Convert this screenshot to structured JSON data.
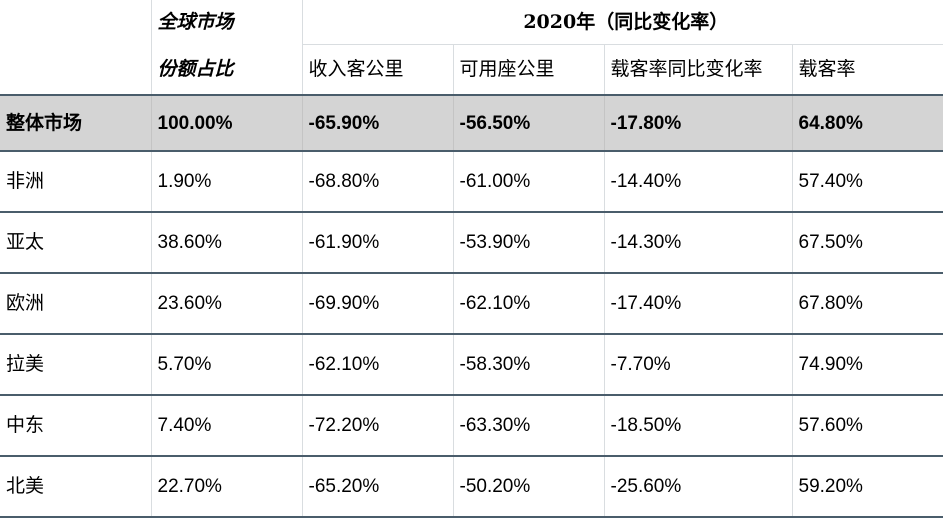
{
  "table": {
    "header_row1": {
      "col1": "全球市场",
      "year_group": "2020年（同比变化率）"
    },
    "header_row2": {
      "col1": "份额占比",
      "col2": "收入客公里",
      "col3": "可用座公里",
      "col4": "载客率同比变化率",
      "col5": "载客率"
    },
    "total_row": {
      "region": "整体市场",
      "share": "100.00%",
      "rpk": "-65.90%",
      "ask": "-56.50%",
      "lf_change": "-17.80%",
      "lf": "64.80%"
    },
    "rows": [
      {
        "region": "非洲",
        "share": "1.90%",
        "rpk": "-68.80%",
        "ask": "-61.00%",
        "lf_change": "-14.40%",
        "lf": "57.40%"
      },
      {
        "region": "亚太",
        "share": "38.60%",
        "rpk": "-61.90%",
        "ask": "-53.90%",
        "lf_change": "-14.30%",
        "lf": "67.50%"
      },
      {
        "region": "欧洲",
        "share": "23.60%",
        "rpk": "-69.90%",
        "ask": "-62.10%",
        "lf_change": "-17.40%",
        "lf": "67.80%"
      },
      {
        "region": "拉美",
        "share": "5.70%",
        "rpk": "-62.10%",
        "ask": "-58.30%",
        "lf_change": "-7.70%",
        "lf": "74.90%"
      },
      {
        "region": "中东",
        "share": "7.40%",
        "rpk": "-72.20%",
        "ask": "-63.30%",
        "lf_change": "-18.50%",
        "lf": "57.60%"
      },
      {
        "region": "北美",
        "share": "22.70%",
        "rpk": "-65.20%",
        "ask": "-50.20%",
        "lf_change": "-25.60%",
        "lf": "59.20%"
      }
    ]
  },
  "chart_data": {
    "type": "table",
    "columns": [
      "",
      "全球市场 份额占比",
      "收入客公里",
      "可用座公里",
      "载客率同比变化率",
      "载客率"
    ],
    "group_header": "2020年（同比变化率）",
    "rows": [
      [
        "整体市场",
        "100.00%",
        "-65.90%",
        "-56.50%",
        "-17.80%",
        "64.80%"
      ],
      [
        "非洲",
        "1.90%",
        "-68.80%",
        "-61.00%",
        "-14.40%",
        "57.40%"
      ],
      [
        "亚太",
        "38.60%",
        "-61.90%",
        "-53.90%",
        "-14.30%",
        "67.50%"
      ],
      [
        "欧洲",
        "23.60%",
        "-69.90%",
        "-62.10%",
        "-17.40%",
        "67.80%"
      ],
      [
        "拉美",
        "5.70%",
        "-62.10%",
        "-58.30%",
        "-7.70%",
        "74.90%"
      ],
      [
        "中东",
        "7.40%",
        "-72.20%",
        "-63.30%",
        "-18.50%",
        "57.60%"
      ],
      [
        "北美",
        "22.70%",
        "-65.20%",
        "-50.20%",
        "-25.60%",
        "59.20%"
      ]
    ],
    "colors": {
      "total_row_bg": "#d4d4d4",
      "row_rule": "#4a5d6b",
      "col_rule": "#d9dde0"
    }
  }
}
